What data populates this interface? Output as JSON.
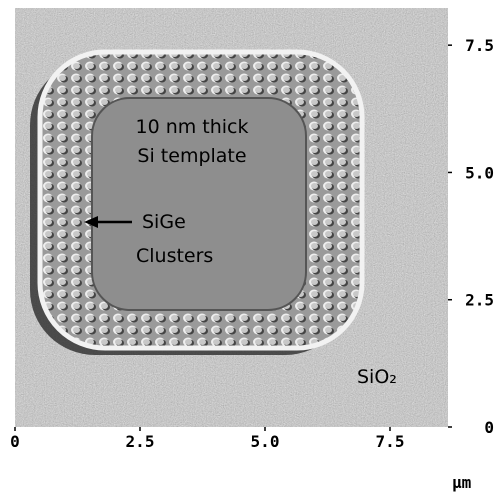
{
  "image": {
    "annotations": [
      "10 nm thick",
      "Si template",
      "SiGe",
      "Clusters",
      "SiO₂"
    ]
  },
  "x_axis": {
    "lim": [
      0,
      8.66
    ],
    "ticks": [
      0,
      2.5,
      {
        "value": 5,
        "label": "5.0"
      },
      7.5
    ],
    "unit": "μm"
  },
  "y_axis": {
    "lim": [
      0,
      8.23
    ],
    "ticks": [
      0,
      2.5,
      {
        "value": 5,
        "label": "5.0"
      },
      7.5
    ]
  }
}
